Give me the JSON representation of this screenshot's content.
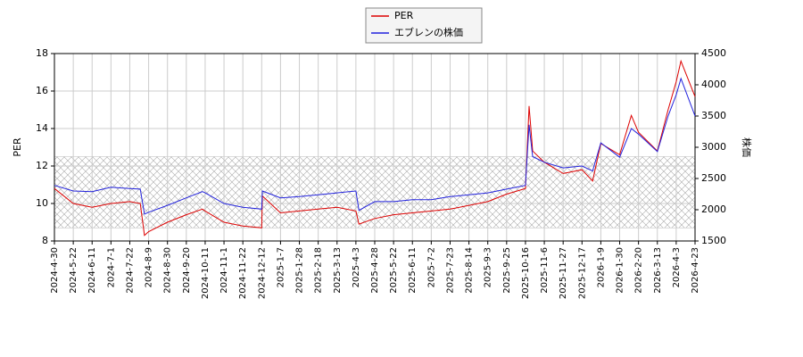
{
  "chart_data": {
    "type": "line",
    "ylabel": "PER",
    "y2label": "株価",
    "x": [
      "2024-4-30",
      "2024-5-22",
      "2024-6-11",
      "2024-7-1",
      "2024-7-22",
      "2024-8-1",
      "2024-8-5",
      "2024-8-9",
      "2024-8-30",
      "2024-9-20",
      "2024-10-8",
      "2024-10-11",
      "2024-11-1",
      "2024-11-22",
      "2024-12-12",
      "2024-12-13",
      "2025-1-7",
      "2025-1-28",
      "2025-2-18",
      "2025-3-13",
      "2025-4-3",
      "2025-4-7",
      "2025-4-28",
      "2025-5-22",
      "2025-6-11",
      "2025-7-2",
      "2025-7-23",
      "2025-8-14",
      "2025-9-3",
      "2025-9-25",
      "2025-10-16",
      "2025-10-20",
      "2025-10-24",
      "2025-11-6",
      "2025-11-27",
      "2025-12-17",
      "2025-12-30",
      "2026-1-9",
      "2026-1-30",
      "2026-2-12",
      "2026-2-20",
      "2026-3-13",
      "2026-3-25",
      "2026-4-3",
      "2026-4-8",
      "2026-4-23"
    ],
    "series": [
      {
        "name": "PER",
        "color": "#dd0000",
        "values": [
          10.8,
          10.0,
          9.8,
          10.0,
          10.1,
          10.0,
          8.3,
          8.5,
          9.0,
          9.4,
          9.7,
          9.6,
          9.0,
          8.8,
          8.7,
          10.4,
          9.5,
          9.6,
          9.7,
          9.8,
          9.6,
          8.9,
          9.2,
          9.4,
          9.5,
          9.6,
          9.7,
          9.9,
          10.1,
          10.5,
          10.8,
          15.2,
          12.8,
          12.2,
          11.6,
          11.8,
          11.2,
          13.2,
          12.6,
          14.7,
          13.8,
          12.8,
          15.0,
          16.5,
          17.6,
          15.7
        ]
      },
      {
        "name": "エブレンの株価",
        "color": "#2222dd",
        "axis": "y2",
        "values": [
          2390,
          2300,
          2290,
          2360,
          2340,
          2330,
          1930,
          1960,
          2070,
          2190,
          2290,
          2270,
          2100,
          2040,
          2010,
          2300,
          2190,
          2210,
          2240,
          2270,
          2300,
          1990,
          2130,
          2130,
          2160,
          2160,
          2210,
          2240,
          2270,
          2330,
          2390,
          3360,
          2850,
          2760,
          2670,
          2700,
          2620,
          3070,
          2840,
          3300,
          3210,
          2930,
          3500,
          3840,
          4100,
          3500
        ]
      }
    ],
    "band": [
      8.7,
      12.5
    ],
    "ylim": [
      8,
      18
    ],
    "yticks": [
      8,
      10,
      12,
      14,
      16,
      18
    ],
    "y2lim": [
      1500,
      4500
    ],
    "y2ticks": [
      1500,
      2000,
      2500,
      3000,
      3500,
      4000,
      4500
    ],
    "xticks": [
      "2024-4-30",
      "2024-5-22",
      "2024-6-11",
      "2024-7-1",
      "2024-7-22",
      "2024-8-9",
      "2024-8-30",
      "2024-9-20",
      "2024-10-11",
      "2024-11-1",
      "2024-11-22",
      "2024-12-12",
      "2025-1-7",
      "2025-1-28",
      "2025-2-18",
      "2025-3-13",
      "2025-4-3",
      "2025-4-28",
      "2025-5-22",
      "2025-6-11",
      "2025-7-2",
      "2025-7-23",
      "2025-8-14",
      "2025-9-3",
      "2025-9-25",
      "2025-10-16",
      "2025-11-6",
      "2025-11-27",
      "2025-12-17",
      "2026-1-9",
      "2026-1-30",
      "2026-2-20",
      "2026-3-13",
      "2026-4-3",
      "2026-4-23"
    ],
    "grid": true
  }
}
